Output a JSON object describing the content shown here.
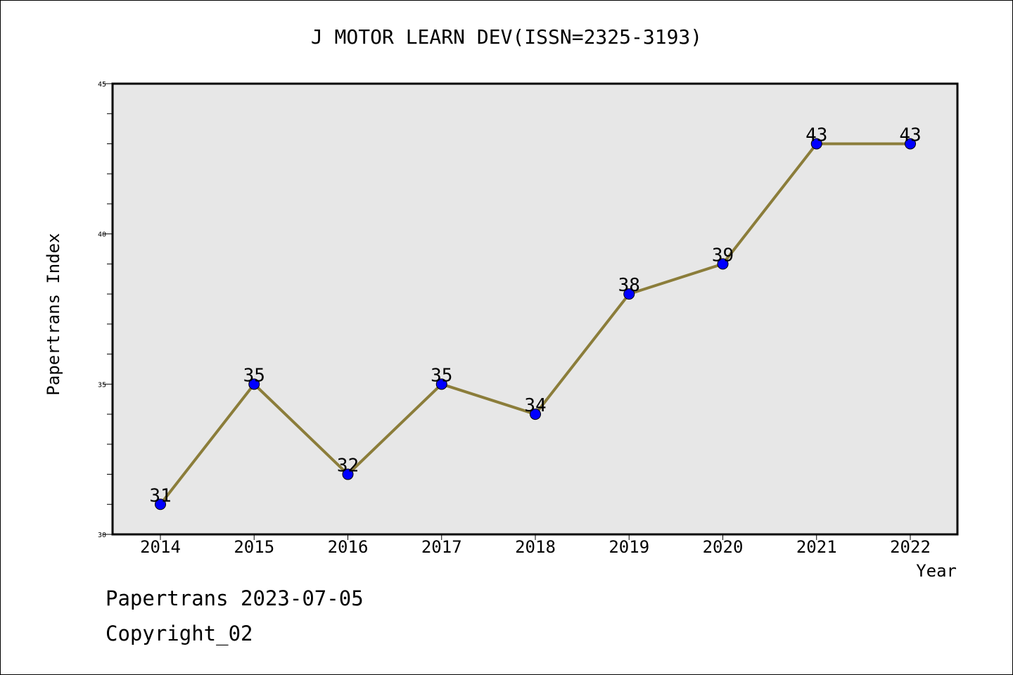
{
  "chart_data": {
    "type": "line",
    "title": "J MOTOR LEARN DEV(ISSN=2325-3193)",
    "xlabel": "Year",
    "ylabel": "Papertrans Index",
    "categories": [
      "2014",
      "2015",
      "2016",
      "2017",
      "2018",
      "2019",
      "2020",
      "2021",
      "2022"
    ],
    "series": [
      {
        "values": [
          31,
          35,
          32,
          35,
          34,
          38,
          39,
          43,
          43
        ]
      }
    ],
    "ylim": [
      30,
      45
    ],
    "y_ticks": [
      30,
      35,
      40,
      45
    ],
    "y_minor_step": 1,
    "grid": false,
    "data_labels": true,
    "colors": {
      "line": "#8B7D3A",
      "marker": "#0000FF",
      "plot_background": "#E7E7E7"
    }
  },
  "footer": {
    "date_text": "Papertrans 2023-07-05",
    "copyright_text": "Copyright_02"
  }
}
